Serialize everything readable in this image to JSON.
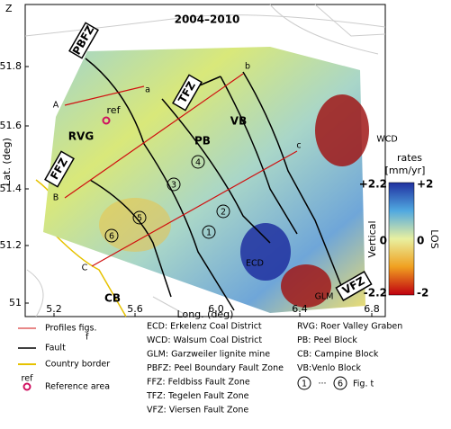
{
  "header": {
    "corner": "Z",
    "title": "2004–2010"
  },
  "axes": {
    "y_label": "Lat. (deg)",
    "x_label": "Long. (deg)",
    "yticks": [
      "51",
      "51.2",
      "51.4",
      "51.6",
      "51.8"
    ],
    "xticks": [
      "5.2",
      "5.6",
      "6.0",
      "6.4",
      "6.8"
    ]
  },
  "map_labels": {
    "zones": [
      "PBFZ",
      "FFZ",
      "TFZ",
      "VFZ"
    ],
    "blocks": [
      "RVG",
      "PB",
      "VB",
      "CB"
    ],
    "districts": [
      "ECD",
      "WCD",
      "GLM"
    ],
    "ref": "ref",
    "profile_starts": [
      "A",
      "B",
      "C"
    ],
    "profile_ends": [
      "a",
      "b",
      "c"
    ],
    "sites": [
      "1",
      "2",
      "3",
      "4",
      "5",
      "6"
    ]
  },
  "colorbar": {
    "title": [
      "rates",
      "[mm/yr]"
    ],
    "vertical_label": "Vertical",
    "vertical_ticks": [
      "+2.2",
      "0",
      "-2.2"
    ],
    "los_label": "LOS",
    "los_ticks": [
      "+2",
      "0",
      "-2"
    ]
  },
  "legend": {
    "col1": [
      "Profiles figs.",
      "f",
      "Fault",
      "Country border",
      "ref",
      "Reference area"
    ],
    "col2": [
      "ECD: Erkelenz Coal District",
      "WCD: Walsum Coal District",
      "GLM: Garzweiler lignite mine",
      "PBFZ: Peel Boundary Fault Zone",
      "FFZ: Feldbiss Fault Zone",
      "TFZ: Tegelen Fault Zone",
      "VFZ: Viersen Fault Zone"
    ],
    "col3": [
      "RVG: Roer Valley Graben",
      "PB: Peel Block",
      "CB: Campine Block",
      "VB:Venlo Block"
    ],
    "sites_range": [
      "1",
      "···",
      "6",
      "Fig. t"
    ]
  }
}
